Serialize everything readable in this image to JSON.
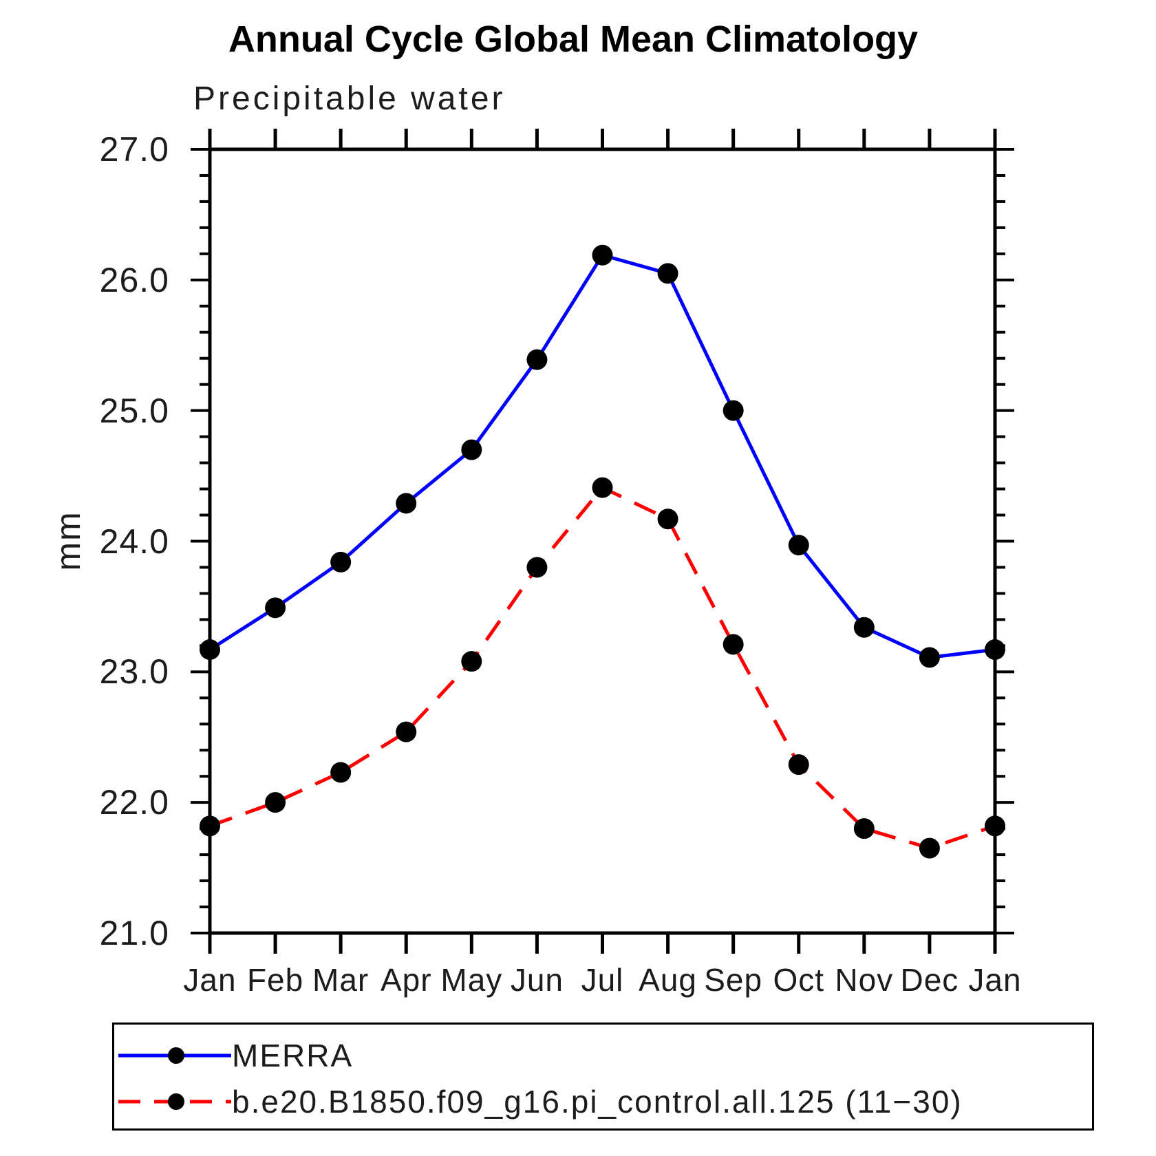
{
  "chart_data": {
    "type": "line",
    "title": "Annual Cycle Global Mean Climatology",
    "subtitle": "Precipitable water",
    "ylabel": "mm",
    "x_categories": [
      "Jan",
      "Feb",
      "Mar",
      "Apr",
      "May",
      "Jun",
      "Jul",
      "Aug",
      "Sep",
      "Oct",
      "Nov",
      "Dec",
      "Jan"
    ],
    "ylim": [
      21.0,
      27.0
    ],
    "y_major_step": 1.0,
    "y_minor_step": 0.2,
    "y_tick_labels": [
      "21.0",
      "22.0",
      "23.0",
      "24.0",
      "25.0",
      "26.0",
      "27.0"
    ],
    "grid": false,
    "legend_position": "bottom",
    "axis_color": "#000000",
    "marker_color": "#000000",
    "series": [
      {
        "name": "MERRA",
        "color": "#0000ff",
        "style": "solid",
        "marker": "circle",
        "values": [
          23.17,
          23.49,
          23.84,
          24.29,
          24.7,
          25.39,
          26.19,
          26.05,
          25.0,
          23.97,
          23.34,
          23.11,
          23.17
        ]
      },
      {
        "name": "b.e20.B1850.f09_g16.pi_control.all.125 (11−30)",
        "color": "#ff0000",
        "style": "dashed",
        "marker": "circle",
        "values": [
          21.82,
          22.0,
          22.23,
          22.54,
          23.08,
          23.8,
          24.41,
          24.17,
          23.21,
          22.29,
          21.8,
          21.65,
          21.82
        ]
      }
    ]
  }
}
